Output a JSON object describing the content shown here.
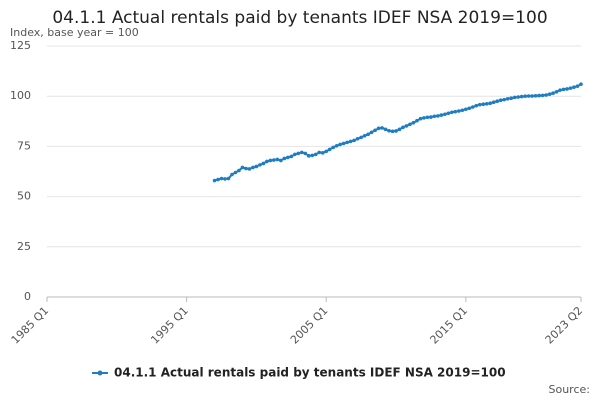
{
  "chart_data": {
    "type": "line",
    "title": "04.1.1 Actual rentals paid by tenants IDEF NSA 2019=100",
    "y_label": "Index, base year = 100",
    "source": "Source:",
    "categories": [
      "1985 Q1",
      null,
      null,
      null,
      null,
      null,
      null,
      null,
      null,
      null,
      null,
      null,
      null,
      null,
      null,
      null,
      null,
      null,
      null,
      null,
      null,
      null,
      null,
      null,
      null,
      null,
      null,
      null,
      null,
      null,
      null,
      null,
      null,
      null,
      null,
      null,
      null,
      null,
      null,
      null,
      "1995 Q1",
      null,
      null,
      null,
      null,
      null,
      null,
      null,
      null,
      null,
      null,
      null,
      null,
      null,
      null,
      null,
      null,
      null,
      null,
      null,
      null,
      null,
      null,
      null,
      null,
      null,
      null,
      null,
      null,
      null,
      null,
      null,
      null,
      null,
      null,
      null,
      null,
      null,
      null,
      null,
      "2005 Q1",
      null,
      null,
      null,
      null,
      null,
      null,
      null,
      null,
      null,
      null,
      null,
      null,
      null,
      null,
      null,
      null,
      null,
      null,
      null,
      null,
      null,
      null,
      null,
      null,
      null,
      null,
      null,
      null,
      null,
      null,
      null,
      null,
      null,
      null,
      null,
      null,
      null,
      null,
      null,
      "2015 Q1",
      null,
      null,
      null,
      null,
      null,
      null,
      null,
      null,
      null,
      null,
      null,
      null,
      null,
      null,
      null,
      null,
      null,
      null,
      null,
      null,
      null,
      null,
      null,
      null,
      null,
      null,
      null,
      null,
      null,
      null,
      null,
      null,
      "2023 Q2"
    ],
    "series": [
      {
        "name": "04.1.1 Actual rentals paid by tenants IDEF NSA 2019=100",
        "color": "#1f7ec2",
        "values": [
          null,
          null,
          null,
          null,
          null,
          null,
          null,
          null,
          null,
          null,
          null,
          null,
          null,
          null,
          null,
          null,
          null,
          null,
          null,
          null,
          null,
          null,
          null,
          null,
          null,
          null,
          null,
          null,
          null,
          null,
          null,
          null,
          null,
          null,
          null,
          null,
          null,
          null,
          null,
          null,
          null,
          null,
          null,
          null,
          null,
          null,
          null,
          null,
          58,
          58.5,
          59,
          58.8,
          59,
          61,
          62,
          63,
          64.5,
          64,
          63.8,
          64.5,
          65,
          65.8,
          66.5,
          67.5,
          68,
          68.2,
          68.5,
          68,
          69,
          69.5,
          70,
          71,
          71.5,
          72,
          71.5,
          70.3,
          70.5,
          71,
          72,
          71.8,
          72.5,
          73.5,
          74.5,
          75.3,
          76,
          76.5,
          77,
          77.5,
          78,
          78.8,
          79.5,
          80.3,
          81,
          82,
          83,
          84,
          84.2,
          83.5,
          82.8,
          82.5,
          82.7,
          83.5,
          84.5,
          85.2,
          86,
          86.8,
          87.8,
          88.8,
          89.2,
          89.5,
          89.6,
          90,
          90.2,
          90.6,
          91,
          91.5,
          92,
          92.3,
          92.6,
          93,
          93.5,
          94,
          94.6,
          95.3,
          95.8,
          96,
          96.2,
          96.5,
          97,
          97.5,
          98,
          98.3,
          98.7,
          99,
          99.4,
          99.6,
          99.8,
          100,
          100.1,
          100.1,
          100.2,
          100.3,
          100.4,
          100.6,
          101,
          101.5,
          102.2,
          103,
          103.4,
          103.6,
          104,
          104.5,
          105,
          106
        ]
      }
    ],
    "ylim": [
      0,
      125
    ],
    "yticks": [
      0,
      25,
      50,
      75,
      100,
      125
    ],
    "grid": true,
    "legend": "bottom"
  }
}
